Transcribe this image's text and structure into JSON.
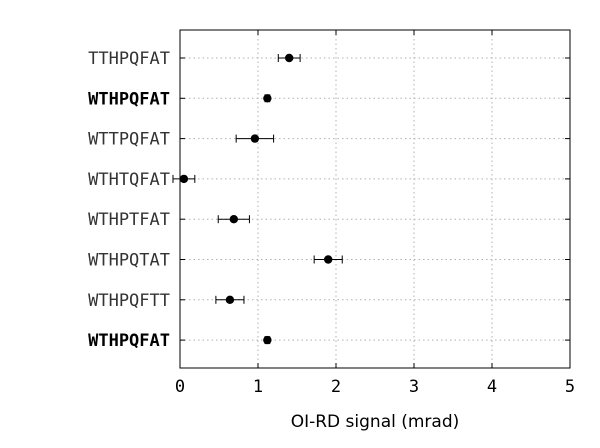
{
  "chart_data": {
    "type": "scatter",
    "xlabel": "OI-RD signal (mrad)",
    "xlim": [
      0,
      5
    ],
    "xticks": [
      0,
      1,
      2,
      3,
      4,
      5
    ],
    "grid": true,
    "categories": [
      {
        "label": "TTHPQFAT",
        "bold": false,
        "x": 1.4,
        "err": 0.14
      },
      {
        "label": "WTHPQFAT",
        "bold": true,
        "x": 1.12,
        "err": 0.03
      },
      {
        "label": "WTTPQFAT",
        "bold": false,
        "x": 0.96,
        "err": 0.24
      },
      {
        "label": "WTHTQFAT",
        "bold": false,
        "x": 0.05,
        "err": 0.14
      },
      {
        "label": "WTHPTFAT",
        "bold": false,
        "x": 0.69,
        "err": 0.2
      },
      {
        "label": "WTHPQTAT",
        "bold": false,
        "x": 1.9,
        "err": 0.18
      },
      {
        "label": "WTHPQFTT",
        "bold": false,
        "x": 0.64,
        "err": 0.18
      },
      {
        "label": "WTHPQFAT",
        "bold": true,
        "x": 1.12,
        "err": 0.03
      }
    ]
  }
}
